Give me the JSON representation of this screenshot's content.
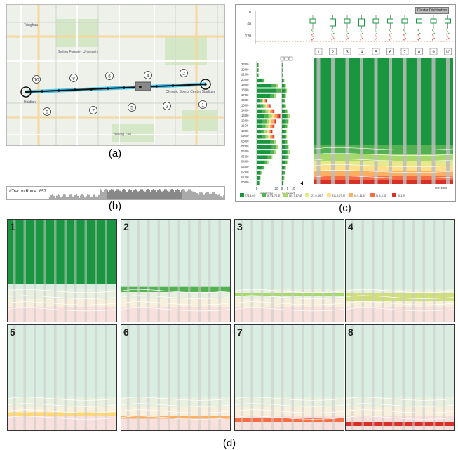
{
  "captions": {
    "a": "(a)",
    "b": "(b)",
    "c": "(c)",
    "d": "(d)"
  },
  "map": {
    "place_labels": [
      "Beijing Forestry University",
      "Olympic Sports Center Stadium",
      "Beijing Zoo",
      "Tsinghua",
      "Haidian"
    ],
    "stations": [
      "10",
      "8",
      "6",
      "4",
      "2",
      "9",
      "7",
      "5",
      "3",
      "1"
    ]
  },
  "trajectory_bar": {
    "label": "#Traj on Route: 857"
  },
  "panel_c": {
    "cluster_button": "Cluster Distribution",
    "boxplot_yticks": [
      "0",
      "60",
      "120"
    ],
    "segment_labels": [
      "1",
      "2",
      "3",
      "4",
      "5",
      "6",
      "7",
      "8",
      "9",
      "10"
    ],
    "time_labels": [
      "23:00",
      "22:00",
      "21:00",
      "20:00",
      "19:00",
      "18:00",
      "17:00",
      "16:00",
      "15:00",
      "14:00",
      "13:00",
      "12:00",
      "11:00",
      "10:00",
      "09:00",
      "08:00",
      "07:00",
      "06:00",
      "05:00",
      "04:00",
      "03:00",
      "02:00",
      "01:00",
      "00:00"
    ],
    "weekday_label": "weekday",
    "weekend_label": "weekend",
    "weekday_axis": [
      "0",
      "20"
    ],
    "weekend_axis": [
      "0",
      "5",
      "10"
    ],
    "legend": [
      {
        "label": "[73.4-∞]",
        "color": "#1a9641"
      },
      {
        "label": "[67.4-73.4]",
        "color": "#52b151"
      },
      {
        "label": "[59.7-67.4]",
        "color": "#a6d96a"
      },
      {
        "label": "[27.9-59.7]",
        "color": "#e6e88a"
      },
      {
        "label": "[11.5-27.9]",
        "color": "#fee08b"
      },
      {
        "label": "[4.5-11.5]",
        "color": "#fdae61"
      },
      {
        "label": "[1.9-4.5]",
        "color": "#f46d43"
      },
      {
        "label": "[0-1.9]",
        "color": "#d73027"
      }
    ],
    "unit_label": "unit: km/h"
  },
  "tiles": [
    {
      "num": "1",
      "color": "#1a9641"
    },
    {
      "num": "2",
      "color": "#52b151"
    },
    {
      "num": "3",
      "color": "#a6d96a"
    },
    {
      "num": "4",
      "color": "#cfe07a"
    },
    {
      "num": "5",
      "color": "#fdd873"
    },
    {
      "num": "6",
      "color": "#fdae61"
    },
    {
      "num": "7",
      "color": "#f46d43"
    },
    {
      "num": "8",
      "color": "#d73027"
    }
  ]
}
